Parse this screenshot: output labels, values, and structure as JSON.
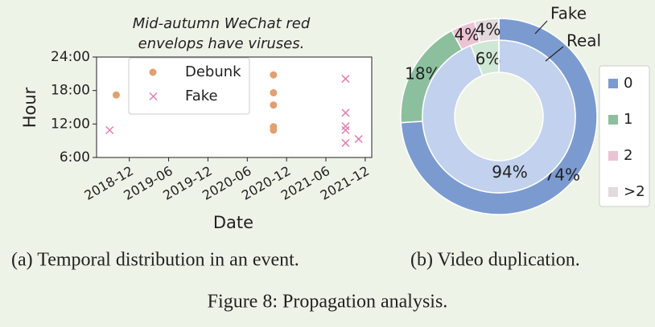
{
  "chart_data": [
    {
      "type": "scatter",
      "annotation": [
        "Mid-autumn WeChat red",
        "envelops have viruses."
      ],
      "x_label": "Date",
      "y_label": "Hour",
      "xlim": [
        "2018-07",
        "2022-01"
      ],
      "xticks": [
        "2018-12",
        "2019-06",
        "2019-12",
        "2020-06",
        "2020-12",
        "2021-06",
        "2021-12"
      ],
      "ylim": [
        6,
        24
      ],
      "yticks": [
        {
          "value": 6,
          "label": "6:00"
        },
        {
          "value": 12,
          "label": "12:00"
        },
        {
          "value": 18,
          "label": "18:00"
        },
        {
          "value": 24,
          "label": "24:00"
        }
      ],
      "series": [
        {
          "name": "Debunk",
          "color": "#e0a070",
          "marker": "o",
          "x": [
            "2018-10",
            "2020-10",
            "2020-10",
            "2020-10",
            "2020-10",
            "2020-10"
          ],
          "values": [
            17.2,
            20.8,
            17.6,
            15.4,
            11.5,
            10.9
          ]
        },
        {
          "name": "Fake",
          "color": "#e080b0",
          "marker": "x",
          "x": [
            "2018-09",
            "2021-09",
            "2021-09",
            "2021-09",
            "2021-09",
            "2021-09",
            "2021-11"
          ],
          "values": [
            10.9,
            20.1,
            14.0,
            11.6,
            10.9,
            8.6,
            9.3
          ]
        }
      ],
      "caption": "(a) Temporal distribution in an event."
    },
    {
      "type": "nested-donut",
      "categories": [
        "0",
        "1",
        "2",
        ">2"
      ],
      "series": [
        {
          "name": "Fake",
          "colors": [
            "#7b9bd0",
            "#8cbf9e",
            "#ebc3d3",
            "#e3dadd"
          ],
          "values": [
            74,
            18,
            4,
            4
          ],
          "value_labels": [
            "74%",
            "18%",
            "4%",
            "4%"
          ]
        },
        {
          "name": "Real",
          "colors": [
            "#c2d1ed",
            "#cfe7d5",
            "#f3dde6",
            "#eee8ea"
          ],
          "values": [
            94,
            6,
            0,
            0
          ],
          "value_labels": [
            "94%",
            "6%",
            null,
            null
          ]
        }
      ],
      "caption": "(b) Video duplication."
    }
  ],
  "figure_caption": "Figure 8: Propagation analysis."
}
